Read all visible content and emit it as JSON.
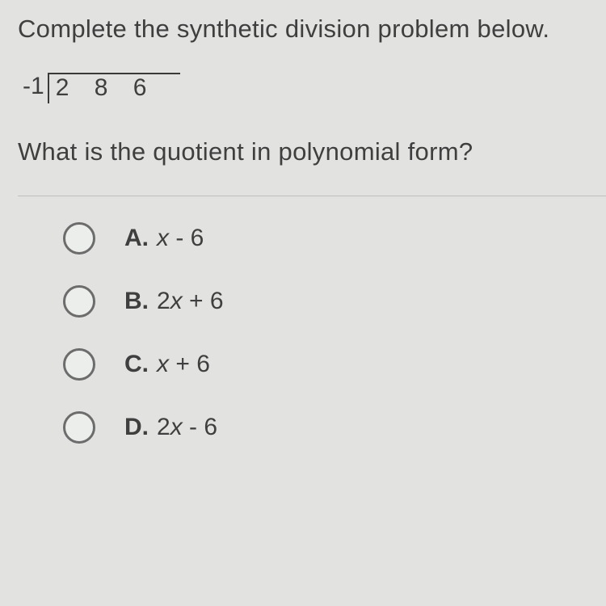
{
  "question": {
    "line1": "Complete the synthetic division problem below.",
    "line2": "What is the quotient in polynomial form?"
  },
  "synthetic": {
    "divisor": "-1",
    "coefficients": [
      "2",
      "8",
      "6"
    ]
  },
  "choices": [
    {
      "letter": "A.",
      "pre": "",
      "var": "x",
      "post": " - 6"
    },
    {
      "letter": "B.",
      "pre": "2",
      "var": "x",
      "post": " + 6"
    },
    {
      "letter": "C.",
      "pre": "",
      "var": "x",
      "post": " + 6"
    },
    {
      "letter": "D.",
      "pre": "2",
      "var": "x",
      "post": " - 6"
    }
  ],
  "colors": {
    "background": "#e2e3e0",
    "text": "#3f3f3f",
    "divider": "#bfbfbd",
    "radio_border": "#6c6c6c"
  },
  "fontsize": {
    "question": 31,
    "math": 30,
    "choice": 30
  }
}
